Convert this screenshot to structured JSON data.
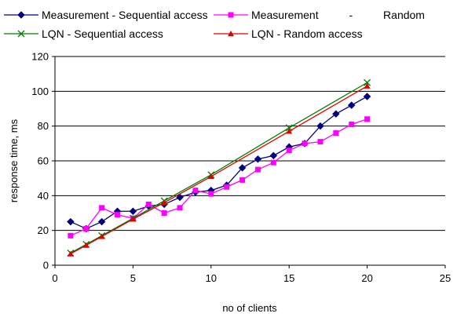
{
  "chart_data": {
    "type": "line",
    "title": "",
    "xlabel": "no of clients",
    "ylabel": "response time, ms",
    "xlim": [
      0,
      25
    ],
    "ylim": [
      0,
      120
    ],
    "xticks": [
      0,
      5,
      10,
      15,
      20,
      25
    ],
    "yticks": [
      0,
      20,
      40,
      60,
      80,
      100,
      120
    ],
    "grid": "horizontal",
    "legend_position": "top",
    "series": [
      {
        "name": "Measurement - Sequential access",
        "color": "#000080",
        "marker": "diamond",
        "x": [
          1,
          2,
          3,
          4,
          5,
          6,
          7,
          8,
          9,
          10,
          11,
          12,
          13,
          14,
          15,
          16,
          17,
          18,
          19,
          20
        ],
        "y": [
          25,
          21,
          25,
          31,
          31,
          34,
          35,
          39,
          42,
          43,
          46,
          56,
          61,
          63,
          68,
          70,
          80,
          87,
          92,
          97
        ]
      },
      {
        "name": "Measurement          -          Random",
        "color": "#ff00ff",
        "marker": "square",
        "x": [
          1,
          2,
          3,
          4,
          5,
          6,
          7,
          8,
          9,
          10,
          11,
          12,
          13,
          14,
          15,
          16,
          17,
          18,
          19,
          20
        ],
        "y": [
          17,
          21,
          33,
          29,
          27,
          35,
          30,
          33,
          43,
          41,
          45,
          49,
          55,
          59,
          66,
          70,
          71,
          76,
          81,
          84
        ]
      },
      {
        "name": "LQN - Sequential access",
        "color": "#008000",
        "marker": "x",
        "x": [
          1,
          2,
          3,
          5,
          7,
          10,
          15,
          20
        ],
        "y": [
          7,
          12,
          17,
          27,
          37,
          52,
          79,
          105
        ]
      },
      {
        "name": "LQN - Random access",
        "color": "#e00000",
        "marker": "triangle",
        "x": [
          1,
          2,
          3,
          5,
          7,
          10,
          15,
          20
        ],
        "y": [
          6.5,
          11.5,
          16.5,
          26.5,
          36,
          51,
          77,
          103
        ]
      }
    ]
  }
}
